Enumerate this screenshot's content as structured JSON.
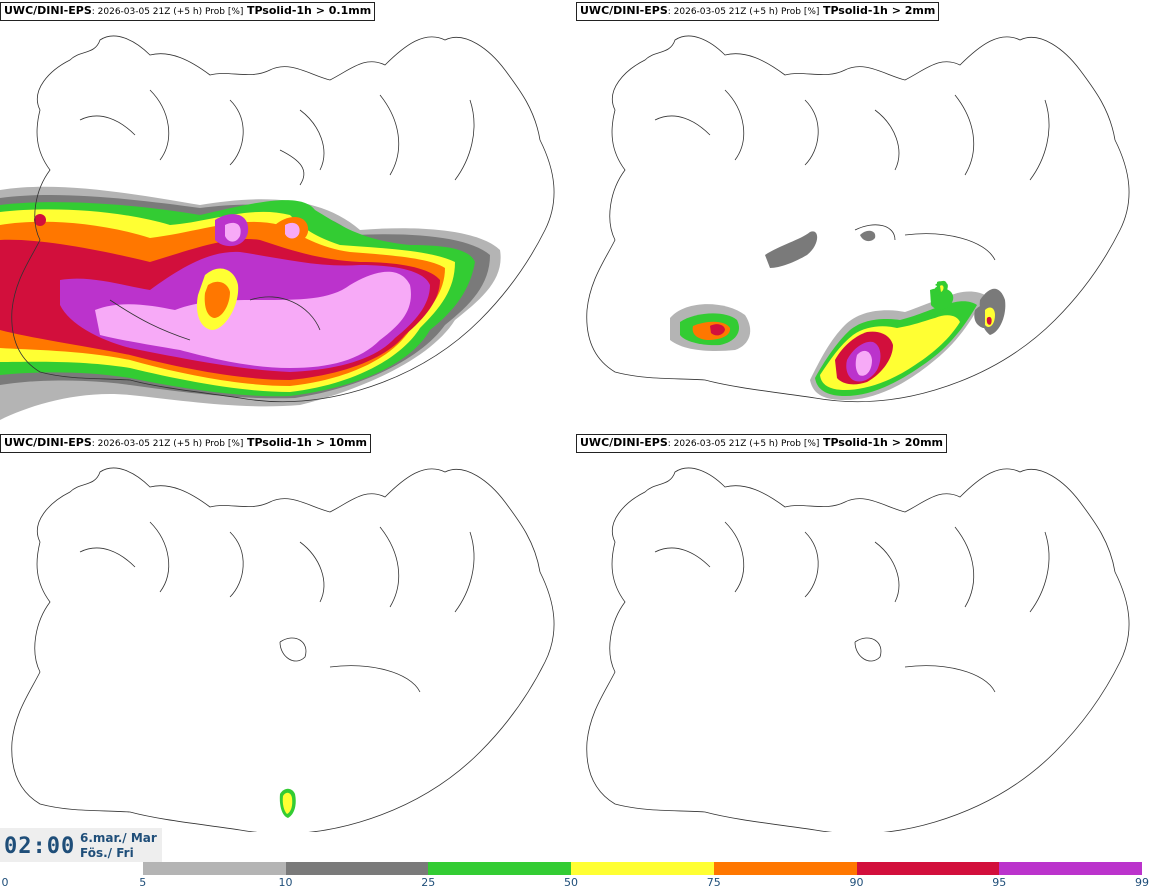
{
  "panels": [
    {
      "model": "UWC/DINI-EPS",
      "meta": ": 2026-03-05 21Z (+5 h) Prob [%]",
      "param": "TPsolid-1h > 0.1mm"
    },
    {
      "model": "UWC/DINI-EPS",
      "meta": ": 2026-03-05 21Z (+5 h) Prob [%]",
      "param": "TPsolid-1h > 2mm"
    },
    {
      "model": "UWC/DINI-EPS",
      "meta": ": 2026-03-05 21Z (+5 h) Prob [%]",
      "param": "TPsolid-1h > 10mm"
    },
    {
      "model": "UWC/DINI-EPS",
      "meta": ": 2026-03-05 21Z (+5 h) Prob [%]",
      "param": "TPsolid-1h > 20mm"
    }
  ],
  "valid_time": {
    "time": "02:00",
    "date_line1": "6.mar./ Mar",
    "date_line2": "Fös./ Fri"
  },
  "colorbar": {
    "ticks": [
      "0",
      "5",
      "10",
      "25",
      "50",
      "75",
      "90",
      "95",
      "99"
    ],
    "colors": [
      "#ffffff",
      "#b4b4b4",
      "#7a7a7a",
      "#33cc33",
      "#ffff33",
      "#ff7700",
      "#d20f3c",
      "#bb33cc",
      "#f7aaf7"
    ]
  }
}
